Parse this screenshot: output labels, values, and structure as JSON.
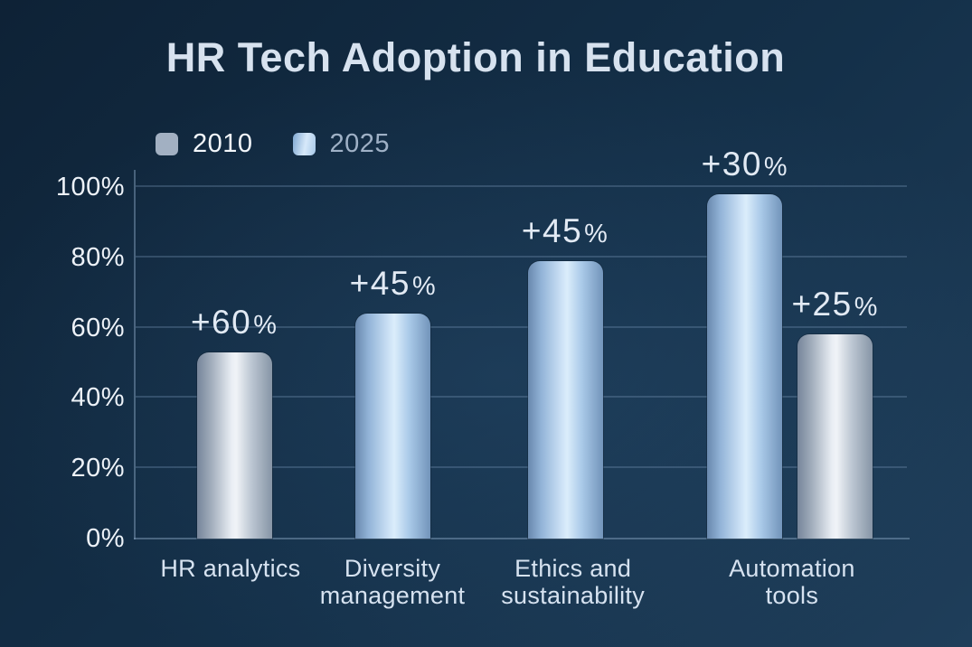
{
  "title": "HR Tech Adoption in Education",
  "legend": {
    "items": [
      {
        "label": "2010",
        "series": "2010"
      },
      {
        "label": "2025",
        "series": "2025"
      }
    ]
  },
  "colors": {
    "background": [
      "#0e2236",
      "#143049",
      "#1f3e5a"
    ],
    "grid_line": "rgba(125,155,190,0.30)",
    "axis_line": "rgba(140,168,198,0.45)",
    "title_text": "#d7e2ef",
    "tick_text": "#edf2f8",
    "xlabel_text": "#d6e2f0",
    "annotation_text": "#e2eaf4",
    "legend_label_2010": "#f3f7fb",
    "legend_label_2025": "#9fb1c6",
    "series_2010_gradient": [
      "#76859a",
      "#9fabba",
      "#e9eef4",
      "#f0f3f7",
      "#bdc7d3",
      "#8695a6"
    ],
    "series_2025_gradient": [
      "#6888ad",
      "#93b4d8",
      "#cfe4f7",
      "#dbedfb",
      "#a9c9e8",
      "#7294ba"
    ],
    "swatch_2010": "#a2b0c2",
    "swatch_2025": [
      "#7fa8d2",
      "#d7e9fa",
      "#a7c8e8"
    ]
  },
  "chart_data": {
    "type": "bar",
    "title": "HR Tech Adoption in Education",
    "ylabel": "",
    "xlabel": "",
    "ylim": [
      0,
      100
    ],
    "yticks": [
      0,
      20,
      40,
      60,
      80,
      100
    ],
    "ytick_suffix": "%",
    "grid": true,
    "legend_position": "top-left",
    "legend_entries": [
      "2010",
      "2025"
    ],
    "categories": [
      {
        "label_lines": [
          "HR analytics"
        ],
        "center_frac": 0.123
      },
      {
        "label_lines": [
          "Diversity",
          "management"
        ],
        "center_frac": 0.333
      },
      {
        "label_lines": [
          "Ethics and",
          "sustainability"
        ],
        "center_frac": 0.567
      },
      {
        "label_lines": [
          "Automation tools"
        ],
        "center_frac": 0.851
      }
    ],
    "bar_width_frac": 0.0973,
    "bars": [
      {
        "category": "HR analytics",
        "series": "2010",
        "value": 53,
        "annotation": "+60%",
        "center_frac": 0.128
      },
      {
        "category": "Diversity management",
        "series": "2025",
        "value": 64,
        "annotation": "+45%",
        "center_frac": 0.334
      },
      {
        "category": "Ethics and sustainability",
        "series": "2025",
        "value": 79,
        "annotation": "+45%",
        "center_frac": 0.557
      },
      {
        "category": "Automation tools",
        "series": "2025",
        "value": 98,
        "annotation": "+30%",
        "center_frac": 0.79
      },
      {
        "category": "Automation tools",
        "series": "2010",
        "value": 58,
        "annotation": "+25%",
        "center_frac": 0.907
      }
    ]
  }
}
